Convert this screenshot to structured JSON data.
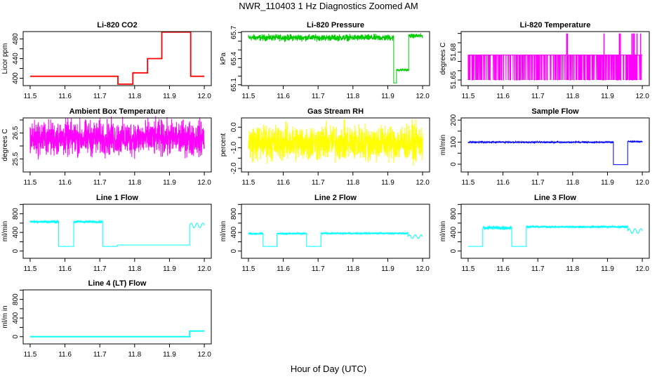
{
  "title": "NWR_110403  1 Hz Diagnostics Zoomed AM",
  "xlabel": "Hour of Day (UTC)",
  "chart_data": [
    {
      "type": "line",
      "title": "Li-820 CO2",
      "ylabel": "Licor ppm",
      "color": "#ff0000",
      "xlim": [
        11.5,
        12.0
      ],
      "ylim": [
        385,
        495
      ],
      "xticks": [
        "11.5",
        "11.6",
        "11.7",
        "11.8",
        "11.9",
        "12.0"
      ],
      "yticks": [
        400,
        420,
        440,
        460,
        480
      ],
      "ytick_labels": [
        "400",
        "440",
        "480"
      ],
      "segments": [
        {
          "x": [
            11.5,
            11.752
          ],
          "y": 404
        },
        {
          "x": [
            11.752,
            11.795
          ],
          "y": 388
        },
        {
          "x": [
            11.795,
            11.837
          ],
          "y": 411
        },
        {
          "x": [
            11.837,
            11.878
          ],
          "y": 440
        },
        {
          "x": [
            11.878,
            11.961
          ],
          "y": 494
        },
        {
          "x": [
            11.961,
            12.0
          ],
          "y": 404
        }
      ]
    },
    {
      "type": "line",
      "title": "Li-820 Pressure",
      "ylabel": "kPa",
      "color": "#00cc00",
      "xlim": [
        11.5,
        12.0
      ],
      "ylim": [
        65.09,
        65.71
      ],
      "xticks": [
        "11.5",
        "11.6",
        "11.7",
        "11.8",
        "11.9",
        "12.0"
      ],
      "yticks": [
        65.1,
        65.2,
        65.3,
        65.4,
        65.5,
        65.6,
        65.7
      ],
      "ytick_labels": [
        "65.1",
        "65.4",
        "65.7"
      ],
      "segments": [
        {
          "x": [
            11.5,
            11.917
          ],
          "y": 65.64,
          "range": [
            65.61,
            65.68
          ]
        },
        {
          "x": [
            11.917,
            11.925
          ],
          "y": 65.12
        },
        {
          "x": [
            11.925,
            11.96
          ],
          "y": 65.27,
          "range": [
            65.26,
            65.29
          ]
        },
        {
          "x": [
            11.96,
            12.0
          ],
          "y": 65.66,
          "range": [
            65.64,
            65.69
          ]
        }
      ]
    },
    {
      "type": "line",
      "title": "Li-820 Temperature",
      "ylabel": "degrees C",
      "color": "#ff00ff",
      "xlim": [
        11.5,
        12.0
      ],
      "ylim": [
        51.644,
        51.702
      ],
      "xticks": [
        "11.5",
        "11.6",
        "11.7",
        "11.8",
        "11.9",
        "12.0"
      ],
      "yticks": [
        51.65,
        51.66,
        51.67,
        51.68,
        51.69,
        51.7
      ],
      "ytick_labels": [
        "51.65",
        "51.68"
      ],
      "segments": [
        {
          "x": [
            11.5,
            12.0
          ],
          "y": 51.677,
          "range": [
            51.65,
            51.677
          ]
        }
      ],
      "spikes": {
        "x": [
          11.783,
          11.785,
          11.89,
          11.934,
          11.937,
          11.97,
          11.974,
          11.977,
          11.985,
          11.995
        ],
        "y": 51.7
      }
    },
    {
      "type": "line",
      "title": "Ambient Box Temperature",
      "ylabel": "degrees C",
      "color": "#ff00ff",
      "xlim": [
        11.5,
        12.0
      ],
      "ylim": [
        25.0,
        27.08
      ],
      "xticks": [
        "11.5",
        "11.6",
        "11.7",
        "11.8",
        "11.9",
        "12.0"
      ],
      "yticks": [
        25.5,
        26.0,
        26.5,
        27.0
      ],
      "ytick_labels": [
        "25.5",
        "26.5"
      ],
      "segments": [
        {
          "x": [
            11.5,
            12.0
          ],
          "y": 26.3,
          "range": [
            25.6,
            26.9
          ]
        }
      ]
    },
    {
      "type": "line",
      "title": "Gas Stream RH",
      "ylabel": "percent",
      "color": "#ffff00",
      "xlim": [
        11.5,
        12.0
      ],
      "ylim": [
        -2.17,
        0.45
      ],
      "xticks": [
        "11.5",
        "11.6",
        "11.7",
        "11.8",
        "11.9",
        "12.0"
      ],
      "yticks": [
        0.0,
        -0.5,
        -1.0,
        -1.5,
        -2.0
      ],
      "ytick_labels": [
        "0.0",
        "-1.0",
        "-2.0"
      ],
      "segments": [
        {
          "x": [
            11.5,
            12.0
          ],
          "y": -0.75,
          "range": [
            -1.6,
            0.1
          ]
        }
      ]
    },
    {
      "type": "line",
      "title": "Sample Flow",
      "ylabel": "ml/min",
      "color": "#0000ff",
      "xlim": [
        11.5,
        12.0
      ],
      "ylim": [
        -35,
        210
      ],
      "xticks": [
        "11.5",
        "11.6",
        "11.7",
        "11.8",
        "11.9",
        "12.0"
      ],
      "yticks": [
        0,
        50,
        100,
        150,
        200
      ],
      "ytick_labels": [
        "0",
        "100",
        "200"
      ],
      "segments": [
        {
          "x": [
            11.5,
            11.917
          ],
          "y": 100,
          "range": [
            97,
            103
          ]
        },
        {
          "x": [
            11.917,
            11.958
          ],
          "y": -2
        },
        {
          "x": [
            11.958,
            12.0
          ],
          "y": 103,
          "range": [
            100,
            106
          ]
        }
      ]
    },
    {
      "type": "line",
      "title": "Line 1 Flow",
      "ylabel": "ml/min",
      "color": "#00ffff",
      "xlim": [
        11.5,
        12.0
      ],
      "ylim": [
        -155,
        1005
      ],
      "xticks": [
        "11.5",
        "11.6",
        "11.7",
        "11.8",
        "11.9",
        "12.0"
      ],
      "yticks": [
        0,
        200,
        400,
        600,
        800,
        1000
      ],
      "ytick_labels": [
        "0",
        "400",
        "800"
      ],
      "segments": [
        {
          "x": [
            11.5,
            11.582
          ],
          "y": 630,
          "range": [
            590,
            650
          ]
        },
        {
          "x": [
            11.582,
            11.625
          ],
          "y": 100
        },
        {
          "x": [
            11.625,
            11.708
          ],
          "y": 630,
          "range": [
            590,
            650
          ]
        },
        {
          "x": [
            11.708,
            11.75
          ],
          "y": 100
        },
        {
          "x": [
            11.75,
            11.958
          ],
          "y": 130
        },
        {
          "x": [
            11.958,
            12.0
          ],
          "y": 560,
          "range": [
            500,
            600
          ],
          "wave": true
        }
      ]
    },
    {
      "type": "line",
      "title": "Line 2 Flow",
      "ylabel": "ml/min",
      "color": "#00ffff",
      "xlim": [
        11.5,
        12.0
      ],
      "ylim": [
        -155,
        1005
      ],
      "xticks": [
        "11.5",
        "11.6",
        "11.7",
        "11.8",
        "11.9",
        "12.0"
      ],
      "yticks": [
        0,
        200,
        400,
        600,
        800,
        1000
      ],
      "ytick_labels": [
        "0",
        "400",
        "800"
      ],
      "segments": [
        {
          "x": [
            11.5,
            11.542
          ],
          "y": 375,
          "range": [
            350,
            395
          ]
        },
        {
          "x": [
            11.542,
            11.582
          ],
          "y": 100
        },
        {
          "x": [
            11.582,
            11.667
          ],
          "y": 375,
          "range": [
            350,
            395
          ]
        },
        {
          "x": [
            11.667,
            11.708
          ],
          "y": 100
        },
        {
          "x": [
            11.708,
            11.958
          ],
          "y": 380,
          "range": [
            360,
            400
          ]
        },
        {
          "x": [
            11.958,
            12.0
          ],
          "y": 320,
          "range": [
            270,
            350
          ],
          "wave": true
        }
      ]
    },
    {
      "type": "line",
      "title": "Line 3 Flow",
      "ylabel": "ml/min",
      "color": "#00ffff",
      "xlim": [
        11.5,
        12.0
      ],
      "ylim": [
        -155,
        1005
      ],
      "xticks": [
        "11.5",
        "11.6",
        "11.7",
        "11.8",
        "11.9",
        "12.0"
      ],
      "yticks": [
        0,
        200,
        400,
        600,
        800,
        1000
      ],
      "ytick_labels": [
        "0",
        "400",
        "800"
      ],
      "segments": [
        {
          "x": [
            11.5,
            11.542
          ],
          "y": 100
        },
        {
          "x": [
            11.542,
            11.625
          ],
          "y": 500,
          "range": [
            450,
            540
          ]
        },
        {
          "x": [
            11.625,
            11.667
          ],
          "y": 100
        },
        {
          "x": [
            11.667,
            11.958
          ],
          "y": 520,
          "range": [
            490,
            540
          ]
        },
        {
          "x": [
            11.958,
            12.0
          ],
          "y": 430,
          "range": [
            380,
            480
          ],
          "wave": true
        }
      ]
    },
    {
      "type": "line",
      "title": "Line 4 (LT) Flow",
      "ylabel": "ml/m in",
      "color": "#00ffff",
      "xlim": [
        11.5,
        12.0
      ],
      "ylim": [
        -155,
        1005
      ],
      "xticks": [
        "11.5",
        "11.6",
        "11.7",
        "11.8",
        "11.9",
        "12.0"
      ],
      "yticks": [
        0,
        200,
        400,
        600,
        800,
        1000
      ],
      "ytick_labels": [
        "0",
        "400",
        "800"
      ],
      "segments": [
        {
          "x": [
            11.5,
            11.958
          ],
          "y": 0
        },
        {
          "x": [
            11.958,
            12.0
          ],
          "y": 120
        }
      ]
    }
  ]
}
